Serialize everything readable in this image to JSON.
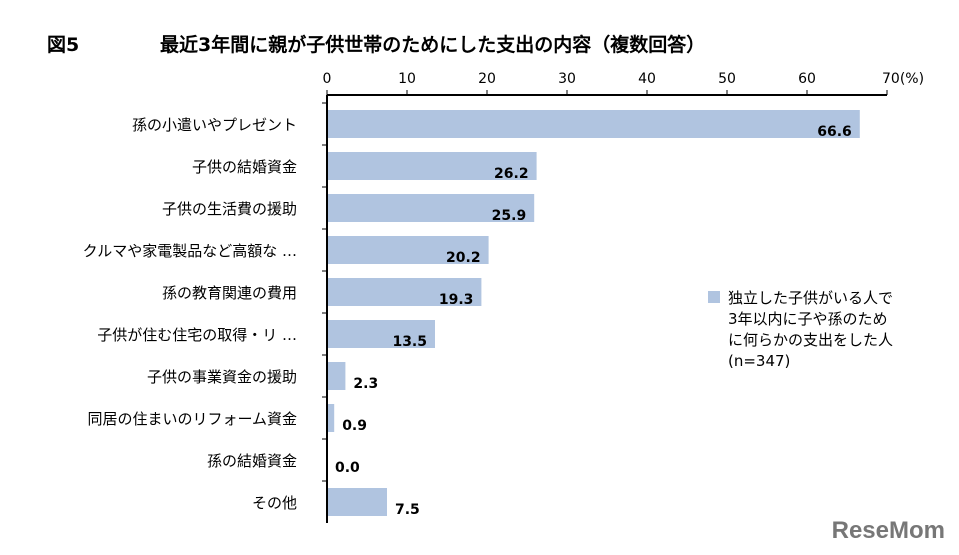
{
  "figure_label": "図5",
  "logo": "ReseMom",
  "chart_data": {
    "type": "bar",
    "orientation": "horizontal",
    "title": "最近3年間に親が子供世帯のためにした支出の内容（複数回答）",
    "categories": [
      "孫の小遣いやプレゼント",
      "子供の結婚資金",
      "子供の生活費の援助",
      "クルマや家電製品など高額な …",
      "孫の教育関連の費用",
      "子供が住む住宅の取得・リ …",
      "子供の事業資金の援助",
      "同居の住まいのリフォーム資金",
      "孫の結婚資金",
      "その他"
    ],
    "series": [
      {
        "name": "独立した子供がいる人で3年以内に子や孫のために何らかの支出をした人(n=347)",
        "values": [
          66.6,
          26.2,
          25.9,
          20.2,
          19.3,
          13.5,
          2.3,
          0.9,
          0.0,
          7.5
        ],
        "color": "#b0c4e0"
      }
    ],
    "value_labels": [
      "66.6",
      "26.2",
      "25.9",
      "20.2",
      "19.3",
      "13.5",
      "2.3",
      "0.9",
      "0.0",
      "7.5"
    ],
    "xlim": [
      0,
      70
    ],
    "ticks": [
      "0",
      "10",
      "20",
      "30",
      "40",
      "50",
      "60",
      "70(%)"
    ],
    "legend_position": "right",
    "grid": false
  }
}
